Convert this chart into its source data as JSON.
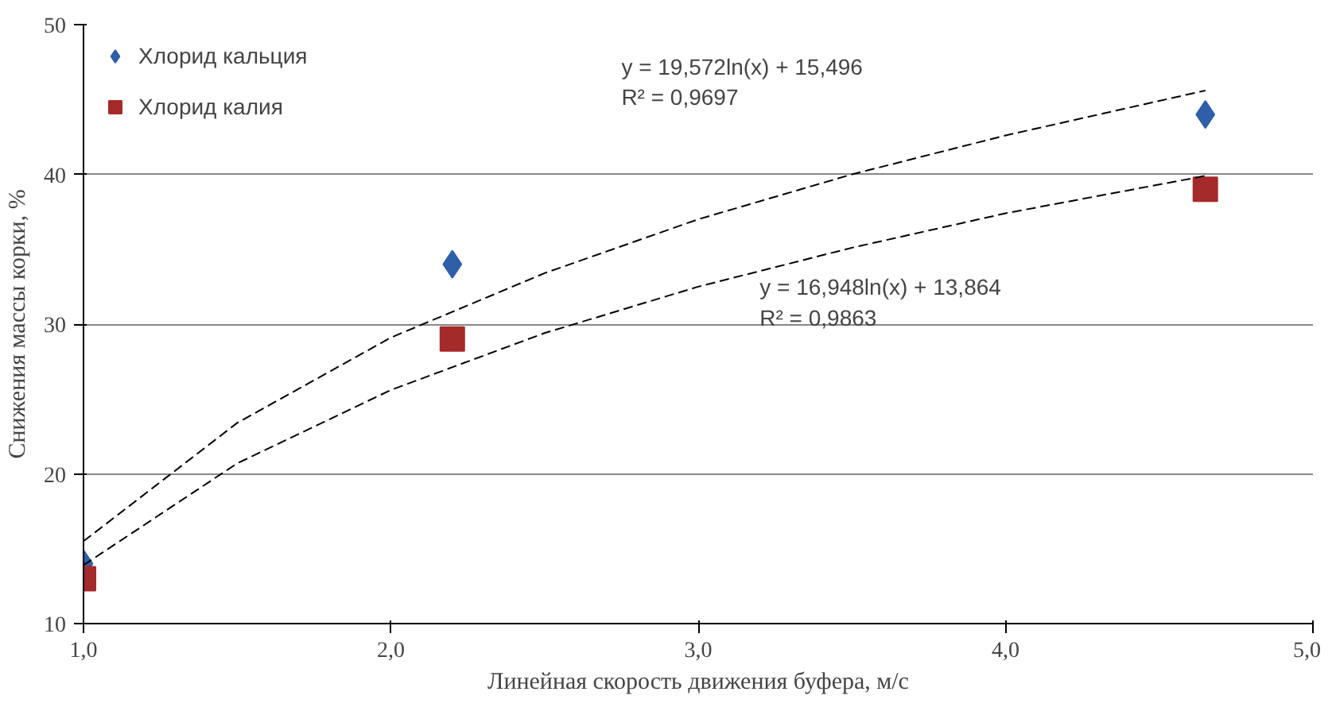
{
  "chart_data": {
    "type": "scatter",
    "xlabel": "Линейная скорость движения буфера, м/с",
    "ylabel": "Снижения массы корки, %",
    "xlim": [
      1,
      5
    ],
    "xticks": [
      {
        "value": 1,
        "label": "1,0"
      },
      {
        "value": 2,
        "label": "2,0"
      },
      {
        "value": 3,
        "label": "3,0"
      },
      {
        "value": 4,
        "label": "4,0"
      },
      {
        "value": 5,
        "label": "5,0"
      }
    ],
    "ylim": [
      10,
      50
    ],
    "yticks": [
      10,
      20,
      30,
      40,
      50
    ],
    "grid": "y",
    "legend": "top left",
    "series": [
      {
        "name": "Хлорид кальция",
        "color": "#2e5fa8",
        "marker": "diamond",
        "x": [
          1.0,
          2.2,
          4.65
        ],
        "values": [
          14,
          34,
          44
        ]
      },
      {
        "name": "Хлорид калия",
        "color": "#a52a2a",
        "marker": "square",
        "x": [
          1.0,
          2.2,
          4.65
        ],
        "values": [
          13,
          29,
          39
        ]
      },
      {
        "type": "line",
        "color": "#000000",
        "line_style": "dashed",
        "x": [
          1,
          1.5,
          2,
          2.5,
          3,
          3.5,
          4,
          4.65
        ],
        "values": [
          15.5,
          23.4,
          29.1,
          33.4,
          37.0,
          40.0,
          42.6,
          45.6
        ]
      },
      {
        "type": "line",
        "color": "#000000",
        "line_style": "dashed",
        "x": [
          1,
          1.5,
          2,
          2.5,
          3,
          3.5,
          4,
          4.65
        ],
        "values": [
          13.9,
          20.7,
          25.6,
          29.4,
          32.5,
          35.1,
          37.4,
          39.9
        ]
      }
    ],
    "annotations": [
      "y = 19,572ln(x) + 15,496\nR² = 0,9697",
      "y = 16,948ln(x) + 13,864\nR² = 0,9863"
    ]
  }
}
